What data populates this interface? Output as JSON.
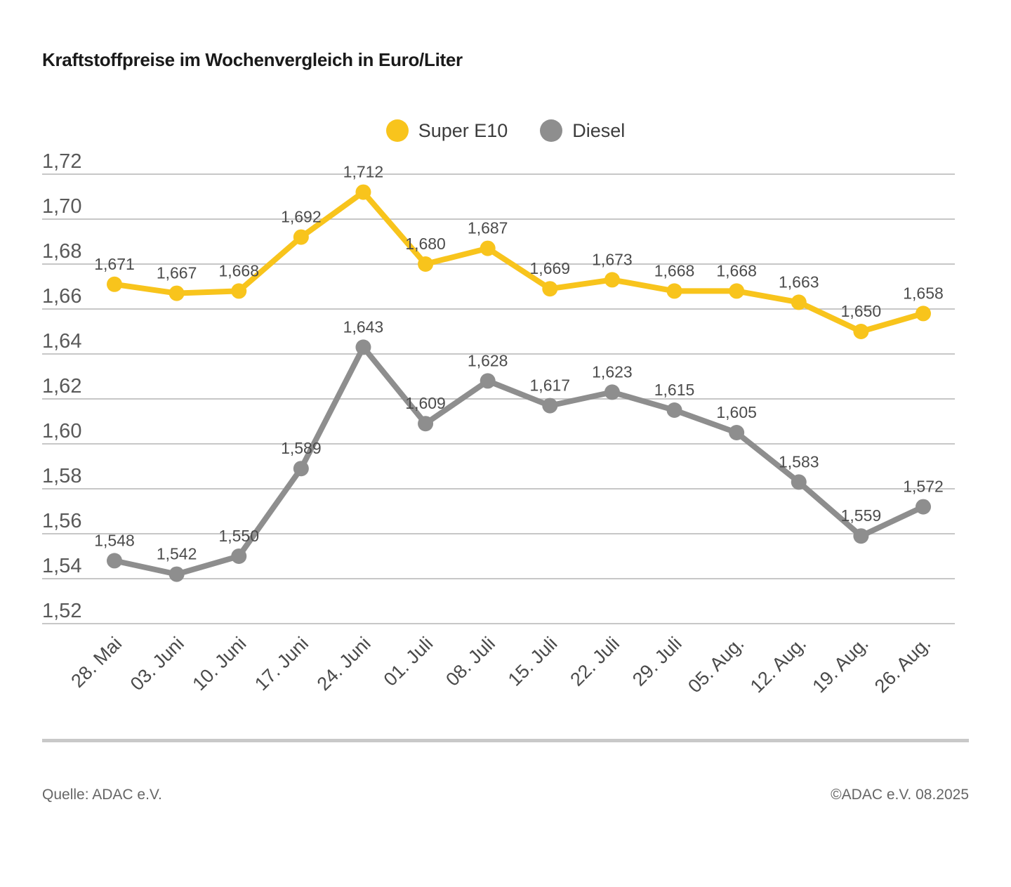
{
  "title": "Kraftstoffpreise im Wochenvergleich in Euro/Liter",
  "legend": {
    "items": [
      {
        "label": "Super E10",
        "color": "#F8C41C"
      },
      {
        "label": "Diesel",
        "color": "#8E8E8E"
      }
    ]
  },
  "footer": {
    "source": "Quelle: ADAC e.V.",
    "copyright": "©ADAC e.V. 08.2025"
  },
  "colors": {
    "super_e10": "#F8C41C",
    "diesel": "#8E8E8E",
    "gridline": "#C7C7C7",
    "axis_text": "#595959",
    "data_label_text": "#4C4C4C"
  },
  "chart_data": {
    "type": "line",
    "title": "Kraftstoffpreise im Wochenvergleich in Euro/Liter",
    "categories": [
      "28. Mai",
      "03. Juni",
      "10. Juni",
      "17. Juni",
      "24. Juni",
      "01. Juli",
      "08. Juli",
      "15. Juli",
      "22. Juli",
      "29. Juli",
      "05. Aug.",
      "12. Aug.",
      "19. Aug.",
      "26. Aug."
    ],
    "series": [
      {
        "name": "Super E10",
        "color": "#F8C41C",
        "values": [
          1.671,
          1.667,
          1.668,
          1.692,
          1.712,
          1.68,
          1.687,
          1.669,
          1.673,
          1.668,
          1.668,
          1.663,
          1.65,
          1.658
        ]
      },
      {
        "name": "Diesel",
        "color": "#8E8E8E",
        "values": [
          1.548,
          1.542,
          1.55,
          1.589,
          1.643,
          1.609,
          1.628,
          1.617,
          1.623,
          1.615,
          1.605,
          1.583,
          1.559,
          1.572
        ]
      }
    ],
    "xlabel": "",
    "ylabel": "Euro/Liter",
    "ylim": [
      1.52,
      1.72
    ],
    "ytick_step": 0.02,
    "ytick_labels": [
      "1,72",
      "1,70",
      "1,68",
      "1,66",
      "1,64",
      "1,62",
      "1,60",
      "1,58",
      "1,56",
      "1,54",
      "1,52"
    ],
    "decimal_separator": ",",
    "grid": true,
    "legend_position": "top-center",
    "data_labels": true
  }
}
